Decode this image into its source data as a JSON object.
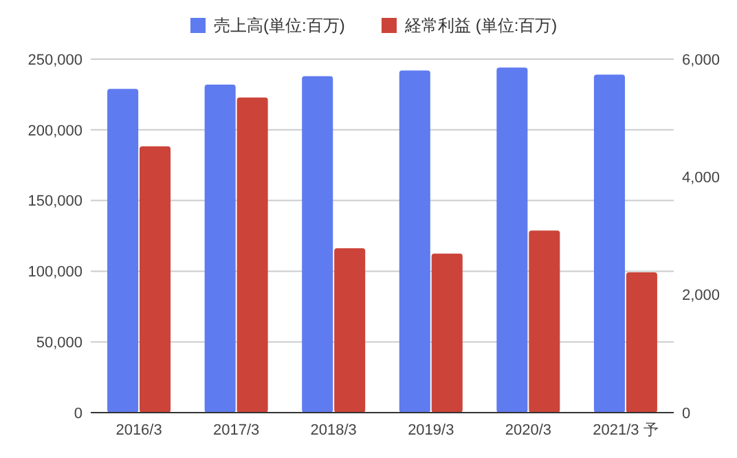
{
  "chart_data": {
    "type": "bar",
    "categories": [
      "2016/3",
      "2017/3",
      "2018/3",
      "2019/3",
      "2020/3",
      "2021/3 予"
    ],
    "series": [
      {
        "name": "売上高(単位:百万)",
        "color": "#5f7bf0",
        "values": [
          229000,
          232000,
          238000,
          242000,
          244000,
          239000
        ]
      },
      {
        "name": "経常利益 (単位:百万)",
        "color": "#cc4439",
        "axis": "y2",
        "values": [
          4520,
          5350,
          2790,
          2700,
          3090,
          2380
        ]
      }
    ],
    "ylim": [
      0,
      250000
    ],
    "yticks": [
      {
        "value": 0,
        "label": "0"
      },
      {
        "value": 50000,
        "label": "50,000"
      },
      {
        "value": 100000,
        "label": "100,000"
      },
      {
        "value": 150000,
        "label": "150,000"
      },
      {
        "value": 200000,
        "label": "200,000"
      },
      {
        "value": 250000,
        "label": "250,000"
      }
    ],
    "y2lim": [
      0,
      6000
    ],
    "y2ticks": [
      {
        "value": 0,
        "label": "0"
      },
      {
        "value": 2000,
        "label": "2,000"
      },
      {
        "value": 4000,
        "label": "4,000"
      },
      {
        "value": 6000,
        "label": "6,000"
      }
    ],
    "grid": "y",
    "legend": "top"
  }
}
